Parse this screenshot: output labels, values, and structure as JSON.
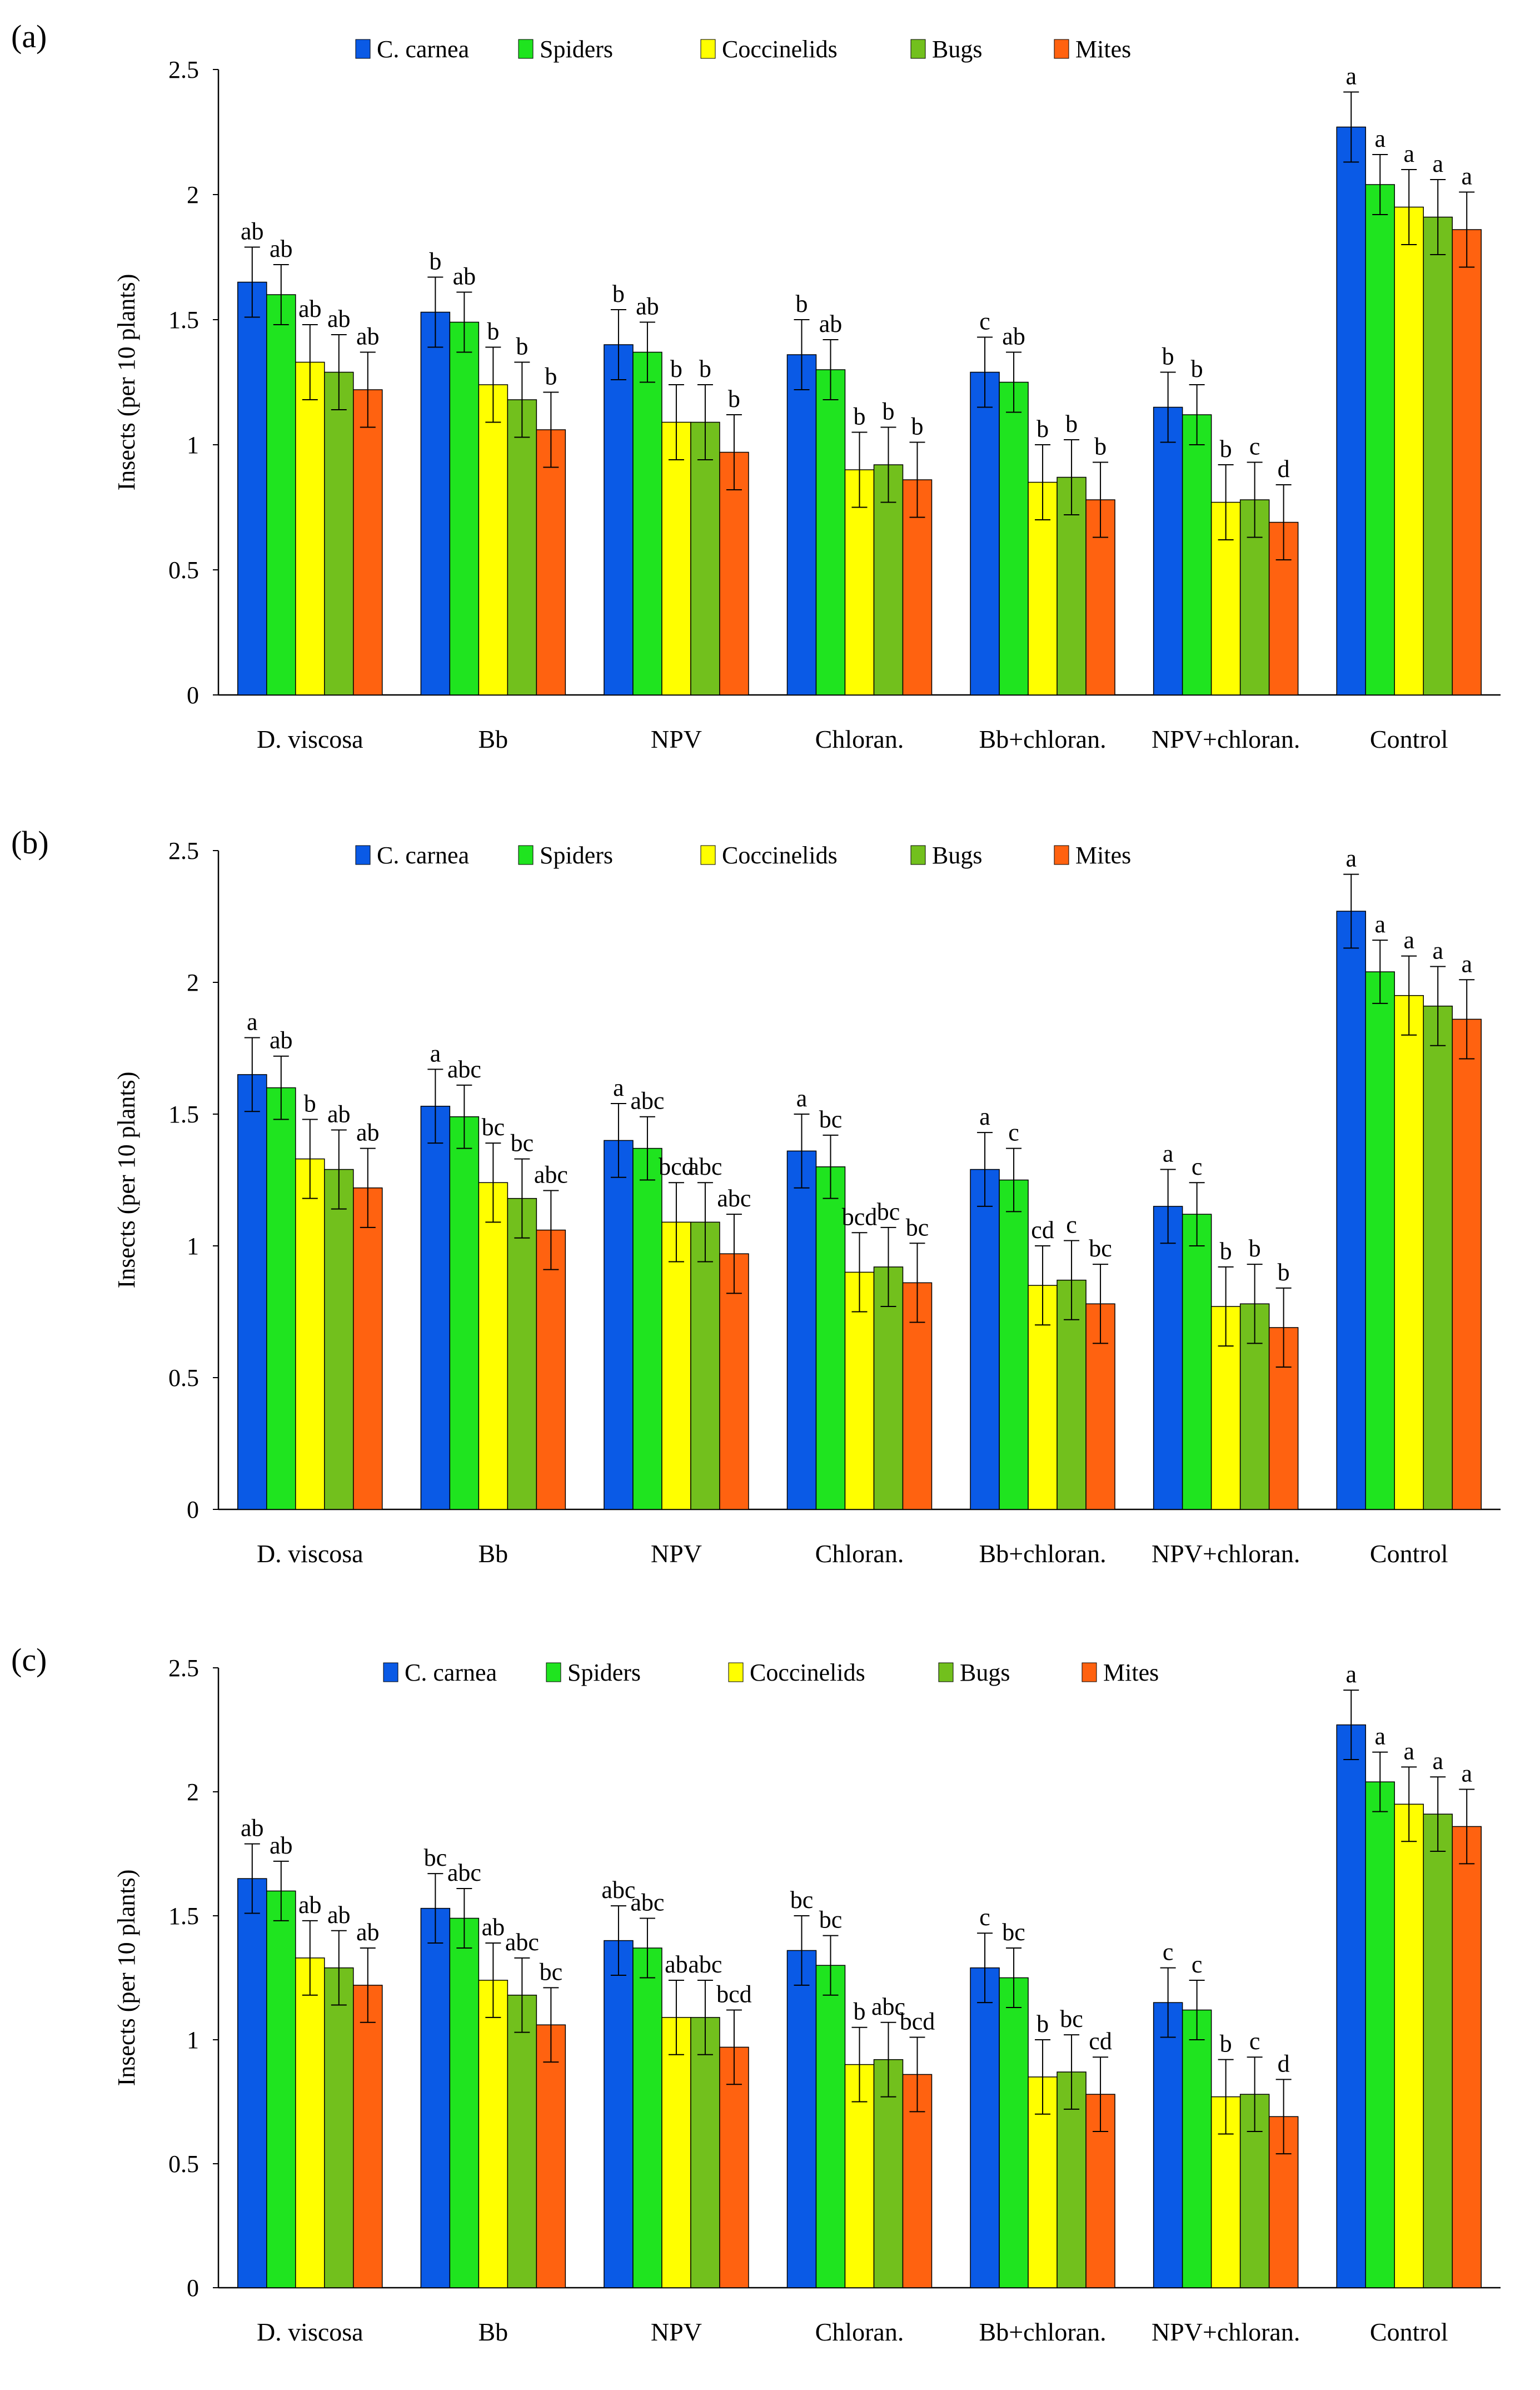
{
  "chart_data": [
    {
      "panel": "(a)",
      "type": "bar",
      "ylabel": "Insects (per 10 plants)",
      "ylim": [
        0,
        2.5
      ],
      "yticks": [
        0,
        0.5,
        1,
        1.5,
        2,
        2.5
      ],
      "ytick_labels": [
        "0",
        "0.5",
        "1",
        "1.5",
        "2",
        "2.5"
      ],
      "legend_position": "top-center",
      "categories": [
        "D. viscosa",
        "Bb",
        "NPV",
        "Chloran.",
        "Bb+chloran.",
        "NPV+chloran.",
        "Control"
      ],
      "series": [
        {
          "name": "C. carnea",
          "color": "#0a5ae6",
          "values": [
            1.65,
            1.53,
            1.4,
            1.36,
            1.29,
            1.15,
            2.27
          ],
          "errors": [
            0.14,
            0.14,
            0.14,
            0.14,
            0.14,
            0.14,
            0.14
          ],
          "letters": [
            "ab",
            "b",
            "b",
            "b",
            "c",
            "b",
            "a"
          ]
        },
        {
          "name": "Spiders",
          "color": "#1fe41f",
          "values": [
            1.6,
            1.49,
            1.37,
            1.3,
            1.25,
            1.12,
            2.04
          ],
          "errors": [
            0.12,
            0.12,
            0.12,
            0.12,
            0.12,
            0.12,
            0.12
          ],
          "letters": [
            "ab",
            "ab",
            "ab",
            "ab",
            "ab",
            "b",
            "a"
          ]
        },
        {
          "name": "Coccinelids",
          "color": "#ffff00",
          "values": [
            1.33,
            1.24,
            1.09,
            0.9,
            0.85,
            0.77,
            1.95
          ],
          "errors": [
            0.15,
            0.15,
            0.15,
            0.15,
            0.15,
            0.15,
            0.15
          ],
          "letters": [
            "ab",
            "b",
            "b",
            "b",
            "b",
            "b",
            "a"
          ]
        },
        {
          "name": "Bugs",
          "color": "#72c01d",
          "values": [
            1.29,
            1.18,
            1.09,
            0.92,
            0.87,
            0.78,
            1.91
          ],
          "errors": [
            0.15,
            0.15,
            0.15,
            0.15,
            0.15,
            0.15,
            0.15
          ],
          "letters": [
            "ab",
            "b",
            "b",
            "b",
            "b",
            "c",
            "a"
          ]
        },
        {
          "name": "Mites",
          "color": "#ff6210",
          "values": [
            1.22,
            1.06,
            0.97,
            0.86,
            0.78,
            0.69,
            1.86
          ],
          "errors": [
            0.15,
            0.15,
            0.15,
            0.15,
            0.15,
            0.15,
            0.15
          ],
          "letters": [
            "ab",
            "b",
            "b",
            "b",
            "b",
            "d",
            "a"
          ]
        }
      ]
    },
    {
      "panel": "(b)",
      "type": "bar",
      "ylabel": "Insects (per 10 plants)",
      "ylim": [
        0,
        2.5
      ],
      "yticks": [
        0,
        0.5,
        1,
        1.5,
        2,
        2.5
      ],
      "ytick_labels": [
        "0",
        "0.5",
        "1",
        "1.5",
        "2",
        "2.5"
      ],
      "legend_position": "top-center",
      "categories": [
        "D. viscosa",
        "Bb",
        "NPV",
        "Chloran.",
        "Bb+chloran.",
        "NPV+chloran.",
        "Control"
      ],
      "series": [
        {
          "name": "C. carnea",
          "color": "#0a5ae6",
          "values": [
            1.65,
            1.53,
            1.4,
            1.36,
            1.29,
            1.15,
            2.27
          ],
          "errors": [
            0.14,
            0.14,
            0.14,
            0.14,
            0.14,
            0.14,
            0.14
          ],
          "letters": [
            "a",
            "a",
            "a",
            "a",
            "a",
            "a",
            "a"
          ]
        },
        {
          "name": "Spiders",
          "color": "#1fe41f",
          "values": [
            1.6,
            1.49,
            1.37,
            1.3,
            1.25,
            1.12,
            2.04
          ],
          "errors": [
            0.12,
            0.12,
            0.12,
            0.12,
            0.12,
            0.12,
            0.12
          ],
          "letters": [
            "ab",
            "abc",
            "abc",
            "bc",
            "c",
            "c",
            "a"
          ]
        },
        {
          "name": "Coccinelids",
          "color": "#ffff00",
          "values": [
            1.33,
            1.24,
            1.09,
            0.9,
            0.85,
            0.77,
            1.95
          ],
          "errors": [
            0.15,
            0.15,
            0.15,
            0.15,
            0.15,
            0.15,
            0.15
          ],
          "letters": [
            "b",
            "bc",
            "bcd",
            "bcd",
            "cd",
            "b",
            "a"
          ]
        },
        {
          "name": "Bugs",
          "color": "#72c01d",
          "values": [
            1.29,
            1.18,
            1.09,
            0.92,
            0.87,
            0.78,
            1.91
          ],
          "errors": [
            0.15,
            0.15,
            0.15,
            0.15,
            0.15,
            0.15,
            0.15
          ],
          "letters": [
            "ab",
            "bc",
            "abc",
            "bc",
            "c",
            "b",
            "a"
          ]
        },
        {
          "name": "Mites",
          "color": "#ff6210",
          "values": [
            1.22,
            1.06,
            0.97,
            0.86,
            0.78,
            0.69,
            1.86
          ],
          "errors": [
            0.15,
            0.15,
            0.15,
            0.15,
            0.15,
            0.15,
            0.15
          ],
          "letters": [
            "ab",
            "abc",
            "abc",
            "bc",
            "bc",
            "b",
            "a"
          ]
        }
      ]
    },
    {
      "panel": "(c)",
      "type": "bar",
      "ylabel": "Insects (per 10 plants)",
      "ylim": [
        0,
        2.5
      ],
      "yticks": [
        0,
        0.5,
        1,
        1.5,
        2,
        2.5
      ],
      "ytick_labels": [
        "0",
        "0.5",
        "1",
        "1.5",
        "2",
        "2.5"
      ],
      "legend_position": "top-center",
      "categories": [
        "D. viscosa",
        "Bb",
        "NPV",
        "Chloran.",
        "Bb+chloran.",
        "NPV+chloran.",
        "Control"
      ],
      "series": [
        {
          "name": "C. carnea",
          "color": "#0a5ae6",
          "values": [
            1.65,
            1.53,
            1.4,
            1.36,
            1.29,
            1.15,
            2.27
          ],
          "errors": [
            0.14,
            0.14,
            0.14,
            0.14,
            0.14,
            0.14,
            0.14
          ],
          "letters": [
            "ab",
            "bc",
            "abc",
            "bc",
            "c",
            "c",
            "a"
          ]
        },
        {
          "name": "Spiders",
          "color": "#1fe41f",
          "values": [
            1.6,
            1.49,
            1.37,
            1.3,
            1.25,
            1.12,
            2.04
          ],
          "errors": [
            0.12,
            0.12,
            0.12,
            0.12,
            0.12,
            0.12,
            0.12
          ],
          "letters": [
            "ab",
            "abc",
            "abc",
            "bc",
            "bc",
            "c",
            "a"
          ]
        },
        {
          "name": "Coccinelids",
          "color": "#ffff00",
          "values": [
            1.33,
            1.24,
            1.09,
            0.9,
            0.85,
            0.77,
            1.95
          ],
          "errors": [
            0.15,
            0.15,
            0.15,
            0.15,
            0.15,
            0.15,
            0.15
          ],
          "letters": [
            "ab",
            "ab",
            "ab",
            "b",
            "b",
            "b",
            "a"
          ]
        },
        {
          "name": "Bugs",
          "color": "#72c01d",
          "values": [
            1.29,
            1.18,
            1.09,
            0.92,
            0.87,
            0.78,
            1.91
          ],
          "errors": [
            0.15,
            0.15,
            0.15,
            0.15,
            0.15,
            0.15,
            0.15
          ],
          "letters": [
            "ab",
            "abc",
            "abc",
            "abc",
            "bc",
            "c",
            "a"
          ]
        },
        {
          "name": "Mites",
          "color": "#ff6210",
          "values": [
            1.22,
            1.06,
            0.97,
            0.86,
            0.78,
            0.69,
            1.86
          ],
          "errors": [
            0.15,
            0.15,
            0.15,
            0.15,
            0.15,
            0.15,
            0.15
          ],
          "letters": [
            "ab",
            "bc",
            "bcd",
            "bcd",
            "cd",
            "d",
            "a"
          ]
        }
      ]
    }
  ]
}
